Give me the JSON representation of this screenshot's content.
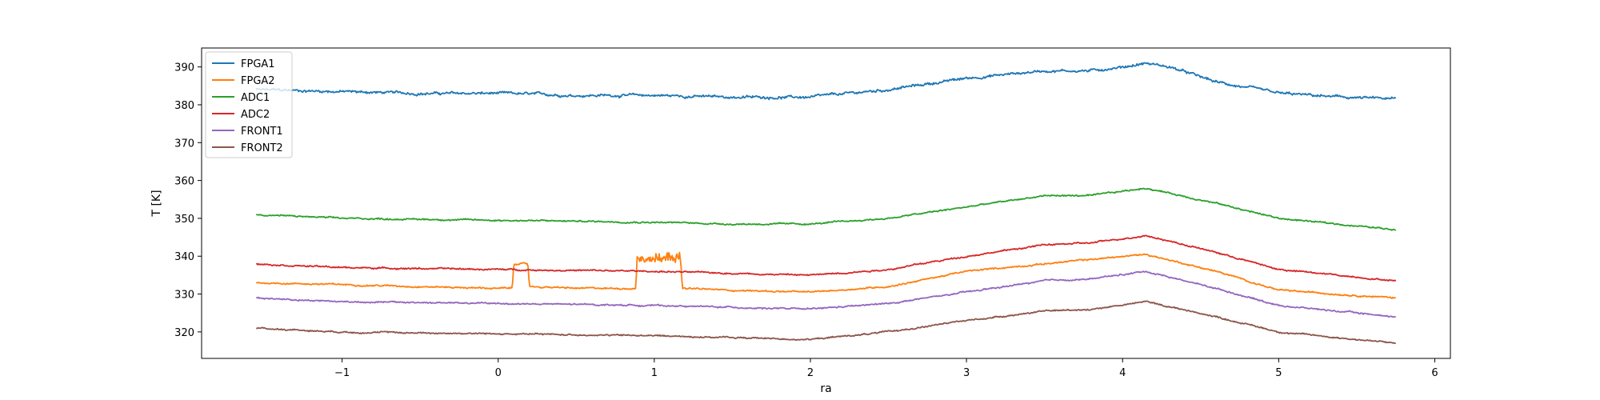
{
  "chart_data": {
    "type": "line",
    "xlabel": "ra",
    "ylabel": "T [K]",
    "xlim": [
      -1.9,
      6.1
    ],
    "ylim": [
      313,
      395
    ],
    "xticks": [
      -1,
      0,
      1,
      2,
      3,
      4,
      5,
      6
    ],
    "yticks": [
      320,
      330,
      340,
      350,
      360,
      370,
      380,
      390
    ],
    "grid": false,
    "legend": "top-left",
    "series": [
      {
        "name": "FPGA1",
        "color": "#1f77b4",
        "noise": 0.45,
        "x": [
          -1.55,
          -1.0,
          -0.5,
          0.0,
          0.5,
          1.0,
          1.5,
          2.0,
          2.5,
          3.0,
          3.5,
          3.8,
          4.0,
          4.15,
          4.3,
          4.6,
          5.0,
          5.4,
          5.75
        ],
        "y": [
          384,
          383.5,
          383,
          383,
          382.5,
          382.5,
          382,
          382,
          384,
          387,
          389,
          389,
          390,
          391,
          390,
          386,
          383,
          382,
          381.5
        ]
      },
      {
        "name": "FPGA2",
        "color": "#ff7f0e",
        "noise": 0.25,
        "x": [
          -1.55,
          -1.0,
          0.0,
          0.09,
          0.1,
          0.19,
          0.2,
          0.5,
          0.88,
          0.89,
          1.17,
          1.18,
          1.5,
          2.0,
          2.5,
          3.0,
          3.5,
          4.15,
          4.6,
          5.0,
          5.75
        ],
        "y": [
          333,
          332.5,
          331.5,
          331.5,
          338,
          338,
          332,
          331.5,
          331.5,
          338.5,
          338.5,
          331.5,
          331,
          330.5,
          332,
          336,
          338,
          340.5,
          336,
          331,
          329
        ]
      },
      {
        "name": "ADC1",
        "color": "#2ca02c",
        "noise": 0.25,
        "x": [
          -1.55,
          -1.0,
          0.0,
          1.0,
          1.5,
          2.0,
          2.5,
          3.0,
          3.5,
          3.8,
          4.15,
          4.6,
          5.0,
          5.75
        ],
        "y": [
          351,
          350,
          349.5,
          349,
          348.5,
          348.5,
          350,
          353,
          356,
          356,
          358,
          354,
          350,
          347
        ]
      },
      {
        "name": "ADC2",
        "color": "#d62728",
        "noise": 0.25,
        "x": [
          -1.55,
          -1.0,
          0.0,
          1.0,
          1.5,
          2.0,
          2.5,
          3.0,
          3.5,
          3.8,
          4.15,
          4.6,
          5.0,
          5.75
        ],
        "y": [
          338,
          337,
          336.5,
          336,
          335.5,
          335,
          336.5,
          340,
          343,
          343.5,
          345.5,
          341,
          336.5,
          333.5
        ]
      },
      {
        "name": "FRONT1",
        "color": "#9467bd",
        "noise": 0.25,
        "x": [
          -1.55,
          -1.0,
          0.0,
          1.0,
          1.5,
          2.0,
          2.5,
          3.0,
          3.5,
          3.8,
          4.15,
          4.6,
          5.0,
          5.75
        ],
        "y": [
          329,
          328,
          327.5,
          327,
          326.5,
          326,
          327.5,
          330.5,
          333.5,
          334,
          336,
          331.5,
          327,
          324
        ]
      },
      {
        "name": "FRONT2",
        "color": "#8c564b",
        "noise": 0.25,
        "x": [
          -1.55,
          -1.0,
          0.0,
          1.0,
          1.5,
          2.0,
          2.5,
          3.0,
          3.5,
          3.8,
          4.15,
          4.6,
          5.0,
          5.75
        ],
        "y": [
          321,
          320,
          319.5,
          319,
          318.5,
          318,
          320,
          323,
          325.5,
          326,
          328,
          324,
          320,
          317
        ]
      }
    ]
  }
}
